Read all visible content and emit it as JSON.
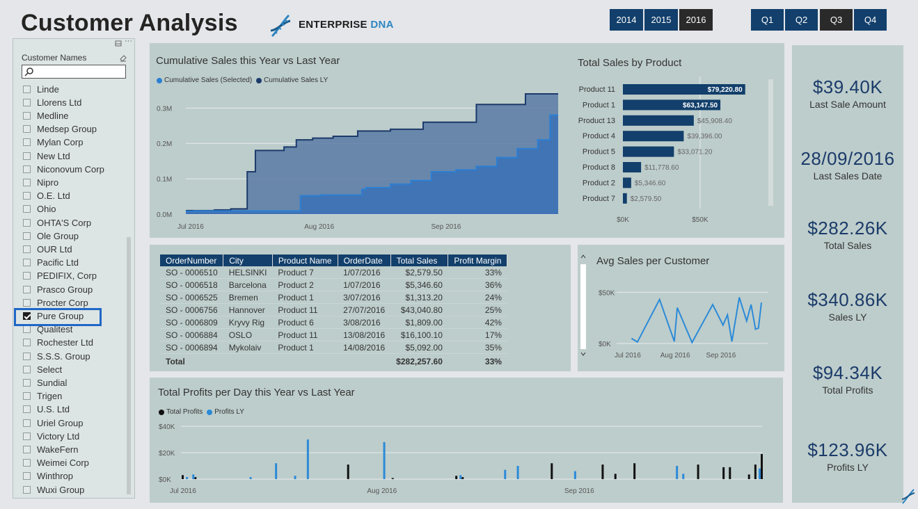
{
  "header": {
    "title": "Customer Analysis",
    "logo_text_1": "ENTERPRISE",
    "logo_text_2": "DNA",
    "years": [
      {
        "label": "2014",
        "selected": false
      },
      {
        "label": "2015",
        "selected": false
      },
      {
        "label": "2016",
        "selected": true
      }
    ],
    "quarters": [
      {
        "label": "Q1",
        "selected": false
      },
      {
        "label": "Q2",
        "selected": false
      },
      {
        "label": "Q3",
        "selected": true
      },
      {
        "label": "Q4",
        "selected": false
      }
    ]
  },
  "slicer": {
    "title": "Customer Names",
    "search_placeholder": "",
    "items": [
      {
        "label": "Linde",
        "checked": false
      },
      {
        "label": "Llorens Ltd",
        "checked": false
      },
      {
        "label": "Medline",
        "checked": false
      },
      {
        "label": "Medsep Group",
        "checked": false
      },
      {
        "label": "Mylan Corp",
        "checked": false
      },
      {
        "label": "New Ltd",
        "checked": false
      },
      {
        "label": "Niconovum Corp",
        "checked": false
      },
      {
        "label": "Nipro",
        "checked": false
      },
      {
        "label": "O.E. Ltd",
        "checked": false
      },
      {
        "label": "Ohio",
        "checked": false
      },
      {
        "label": "OHTA'S Corp",
        "checked": false
      },
      {
        "label": "Ole Group",
        "checked": false
      },
      {
        "label": "OUR Ltd",
        "checked": false
      },
      {
        "label": "Pacific Ltd",
        "checked": false
      },
      {
        "label": "PEDIFIX, Corp",
        "checked": false
      },
      {
        "label": "Prasco Group",
        "checked": false
      },
      {
        "label": "Procter Corp",
        "checked": false
      },
      {
        "label": "Pure Group",
        "checked": true
      },
      {
        "label": "Qualitest",
        "checked": false
      },
      {
        "label": "Rochester Ltd",
        "checked": false
      },
      {
        "label": "S.S.S. Group",
        "checked": false
      },
      {
        "label": "Select",
        "checked": false
      },
      {
        "label": "Sundial",
        "checked": false
      },
      {
        "label": "Trigen",
        "checked": false
      },
      {
        "label": "U.S. Ltd",
        "checked": false
      },
      {
        "label": "Uriel Group",
        "checked": false
      },
      {
        "label": "Victory Ltd",
        "checked": false
      },
      {
        "label": "WakeFern",
        "checked": false
      },
      {
        "label": "Weimei Corp",
        "checked": false
      },
      {
        "label": "Winthrop",
        "checked": false
      },
      {
        "label": "Wuxi Group",
        "checked": false
      }
    ]
  },
  "kpis": [
    {
      "value": "$39.40K",
      "label": "Last Sale Amount"
    },
    {
      "value": "28/09/2016",
      "label": "Last Sales Date"
    },
    {
      "value": "$282.26K",
      "label": "Total Sales"
    },
    {
      "value": "$340.86K",
      "label": "Sales LY"
    },
    {
      "value": "$94.34K",
      "label": "Total Profits"
    },
    {
      "value": "$123.96K",
      "label": "Profits LY"
    }
  ],
  "orders_table": {
    "columns": [
      "OrderNumber",
      "City",
      "Product Name",
      "OrderDate",
      "Total Sales",
      "Profit Margin"
    ],
    "rows": [
      [
        "SO - 0006510",
        "HELSINKI",
        "Product 7",
        "1/07/2016",
        "$2,579.50",
        "33%"
      ],
      [
        "SO - 0006518",
        "Barcelona",
        "Product 2",
        "1/07/2016",
        "$5,346.60",
        "36%"
      ],
      [
        "SO - 0006525",
        "Bremen",
        "Product 1",
        "3/07/2016",
        "$1,313.20",
        "24%"
      ],
      [
        "SO - 0006756",
        "Hannover",
        "Product 11",
        "27/07/2016",
        "$43,040.80",
        "25%"
      ],
      [
        "SO - 0006809",
        "Kryvy Rig",
        "Product 6",
        "3/08/2016",
        "$1,809.00",
        "42%"
      ],
      [
        "SO - 0006884",
        "OSLO",
        "Product 11",
        "13/08/2016",
        "$16,100.10",
        "17%"
      ],
      [
        "SO - 0006894",
        "Mykolaiv",
        "Product 1",
        "14/08/2016",
        "$5,092.00",
        "35%"
      ]
    ],
    "total": {
      "label": "Total",
      "sales": "$282,257.60",
      "margin": "33%"
    }
  },
  "colors": {
    "accent_dark": "#123f6b",
    "accent_light": "#2b8ad8",
    "selected": "#2a2a2a",
    "panel": "#bdcdcb"
  },
  "chart_data": [
    {
      "type": "area",
      "title": "Cumulative Sales this Year vs Last Year",
      "x_ticks": [
        "Jul 2016",
        "Aug 2016",
        "Sep 2016"
      ],
      "y_ticks": [
        "0.0M",
        "0.1M",
        "0.2M",
        "0.3M"
      ],
      "ylim": [
        0,
        0.34
      ],
      "grid": true,
      "legend_position": "top-left",
      "series": [
        {
          "name": "Cumulative Sales (Selected)",
          "color": "#2b7fd4",
          "x": [
            "2016-07-01",
            "2016-07-03",
            "2016-07-27",
            "2016-07-29",
            "2016-08-03",
            "2016-08-13",
            "2016-08-14",
            "2016-08-20",
            "2016-08-25",
            "2016-08-30",
            "2016-09-05",
            "2016-09-10",
            "2016-09-15",
            "2016-09-20",
            "2016-09-25",
            "2016-09-28",
            "2016-09-30"
          ],
          "values": [
            0.008,
            0.009,
            0.009,
            0.052,
            0.054,
            0.07,
            0.075,
            0.085,
            0.095,
            0.12,
            0.125,
            0.135,
            0.16,
            0.185,
            0.21,
            0.28,
            0.28
          ]
        },
        {
          "name": "Cumulative Sales LY",
          "color": "#1c3a6b",
          "x": [
            "2016-07-01",
            "2016-07-08",
            "2016-07-12",
            "2016-07-16",
            "2016-07-18",
            "2016-07-25",
            "2016-07-28",
            "2016-08-01",
            "2016-08-06",
            "2016-08-12",
            "2016-08-20",
            "2016-08-28",
            "2016-09-05",
            "2016-09-10",
            "2016-09-22",
            "2016-09-30"
          ],
          "values": [
            0.01,
            0.012,
            0.015,
            0.12,
            0.18,
            0.19,
            0.21,
            0.215,
            0.22,
            0.235,
            0.24,
            0.26,
            0.26,
            0.31,
            0.34,
            0.34
          ]
        }
      ]
    },
    {
      "type": "bar",
      "title": "Total Sales by Product",
      "categories": [
        "Product 11",
        "Product 1",
        "Product 13",
        "Product 4",
        "Product 5",
        "Product 8",
        "Product 2",
        "Product 7"
      ],
      "values": [
        79220.8,
        63147.5,
        45908.4,
        39396.0,
        33071.2,
        11778.6,
        5346.6,
        2579.5
      ],
      "value_labels": [
        "$79,220.80",
        "$63,147.50",
        "$45,908.40",
        "$39,396.00",
        "$33,071.20",
        "$11,778.60",
        "$5,346.60",
        "$2,579.50"
      ],
      "x_ticks": [
        "$0K",
        "$50K"
      ],
      "xlim": [
        0,
        87000
      ],
      "orientation": "horizontal",
      "color": "#123f6b"
    },
    {
      "type": "line",
      "title": "Avg Sales per Customer",
      "x_ticks": [
        "Jul 2016",
        "Aug 2016",
        "Sep 2016"
      ],
      "y_ticks": [
        "$0K",
        "$50K"
      ],
      "ylim": [
        0,
        55000
      ],
      "color": "#2b8ad8",
      "x": [
        "2016-07-04",
        "2016-07-08",
        "2016-07-23",
        "2016-08-02",
        "2016-08-04",
        "2016-08-14",
        "2016-08-28",
        "2016-09-04",
        "2016-09-07",
        "2016-09-10",
        "2016-09-15",
        "2016-09-20",
        "2016-09-23",
        "2016-09-26",
        "2016-09-28",
        "2016-09-30"
      ],
      "values": [
        5000,
        1500,
        43000,
        2000,
        35000,
        1000,
        38000,
        18000,
        28000,
        2000,
        45000,
        22000,
        38000,
        14000,
        15000,
        40000
      ]
    },
    {
      "type": "bar",
      "title": "Total Profits per Day this Year vs Last Year",
      "x_ticks": [
        "Jul 2016",
        "Aug 2016",
        "Sep 2016"
      ],
      "y_ticks": [
        "$0K",
        "$20K",
        "$40K"
      ],
      "ylim": [
        0,
        40000
      ],
      "series": [
        {
          "name": "Total Profits",
          "color": "#111111",
          "x": [
            "2016-07-01",
            "2016-07-03",
            "2016-07-27",
            "2016-08-03",
            "2016-08-13",
            "2016-08-14",
            "2016-08-28",
            "2016-09-05",
            "2016-09-07",
            "2016-09-10",
            "2016-09-20",
            "2016-09-24",
            "2016-09-25",
            "2016-09-28",
            "2016-09-29",
            "2016-09-30"
          ],
          "values": [
            3000,
            1500,
            11000,
            800,
            2500,
            1500,
            12000,
            11000,
            4000,
            12000,
            11000,
            9000,
            9000,
            3500,
            11000,
            19000
          ]
        },
        {
          "name": "Profits LY",
          "color": "#2b8ad8",
          "x": [
            "2016-07-02",
            "2016-07-03",
            "2016-07-12",
            "2016-07-16",
            "2016-07-19",
            "2016-07-21",
            "2016-08-02",
            "2016-08-14",
            "2016-08-21",
            "2016-08-23",
            "2016-09-01",
            "2016-09-17",
            "2016-09-18",
            "2016-09-30"
          ],
          "values": [
            1500,
            3500,
            1500,
            12000,
            2500,
            30000,
            28000,
            3000,
            7000,
            10000,
            6000,
            10000,
            4000,
            8000
          ]
        }
      ]
    }
  ]
}
